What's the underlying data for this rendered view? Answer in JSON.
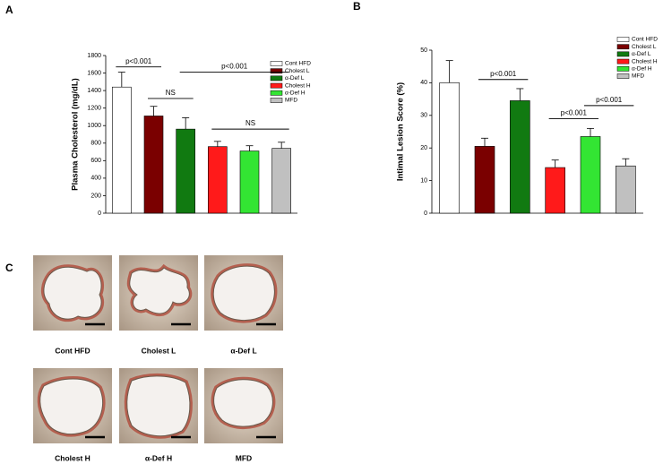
{
  "panel_labels": [
    "A",
    "B",
    "C"
  ],
  "micrographs": [
    "Cont HFD",
    "Cholest L",
    "α-Def L",
    "Cholest  H",
    "α-Def H",
    "MFD"
  ],
  "chart_data": [
    {
      "type": "bar",
      "y_label": "Plasma Cholesterol (mg/dL)",
      "ylim": [
        0,
        1800
      ],
      "yticks": [
        0,
        200,
        400,
        600,
        800,
        1000,
        1200,
        1400,
        1600,
        1800
      ],
      "series": [
        {
          "name": "Cont HFD",
          "color": "#ffffff",
          "values": [
            1440
          ],
          "errors": [
            170
          ]
        },
        {
          "name": "Cholest L",
          "color": "#7a0000",
          "values": [
            1110
          ],
          "errors": [
            110
          ]
        },
        {
          "name": "α-Def L",
          "color": "#117a11",
          "values": [
            960
          ],
          "errors": [
            130
          ]
        },
        {
          "name": "Cholest H",
          "color": "#ff1a1a",
          "values": [
            760
          ],
          "errors": [
            60
          ]
        },
        {
          "name": "α-Def H",
          "color": "#33e533",
          "values": [
            710
          ],
          "errors": [
            60
          ]
        },
        {
          "name": "MFD",
          "color": "#c0c0c0",
          "values": [
            740
          ],
          "errors": [
            70
          ]
        }
      ],
      "annotations": [
        {
          "text": "p<0.001",
          "y": 1670
        },
        {
          "text": "NS",
          "y": 1310
        },
        {
          "text": "p<0.001",
          "y": 1610
        },
        {
          "text": "NS",
          "y": 960
        }
      ]
    },
    {
      "type": "bar",
      "y_label": "Intimal Lesion Score (%)",
      "ylim": [
        0,
        50
      ],
      "yticks": [
        0,
        10,
        20,
        30,
        40,
        50
      ],
      "series": [
        {
          "name": "Cont HFD",
          "color": "#ffffff",
          "values": [
            40
          ],
          "errors": [
            6.8
          ]
        },
        {
          "name": "Cholest L",
          "color": "#7a0000",
          "values": [
            20.5
          ],
          "errors": [
            2.5
          ]
        },
        {
          "name": "α-Def L",
          "color": "#117a11",
          "values": [
            34.5
          ],
          "errors": [
            3.7
          ]
        },
        {
          "name": "Cholest H",
          "color": "#ff1a1a",
          "values": [
            14
          ],
          "errors": [
            2.3
          ]
        },
        {
          "name": "α-Def H",
          "color": "#33e533",
          "values": [
            23.5
          ],
          "errors": [
            2.5
          ]
        },
        {
          "name": "MFD",
          "color": "#c0c0c0",
          "values": [
            14.5
          ],
          "errors": [
            2.2
          ]
        }
      ],
      "annotations": [
        {
          "text": "p<0.001",
          "y": 41
        },
        {
          "text": "p<0.001",
          "y": 29
        },
        {
          "text": "p<0.001",
          "y": 33
        }
      ]
    }
  ]
}
